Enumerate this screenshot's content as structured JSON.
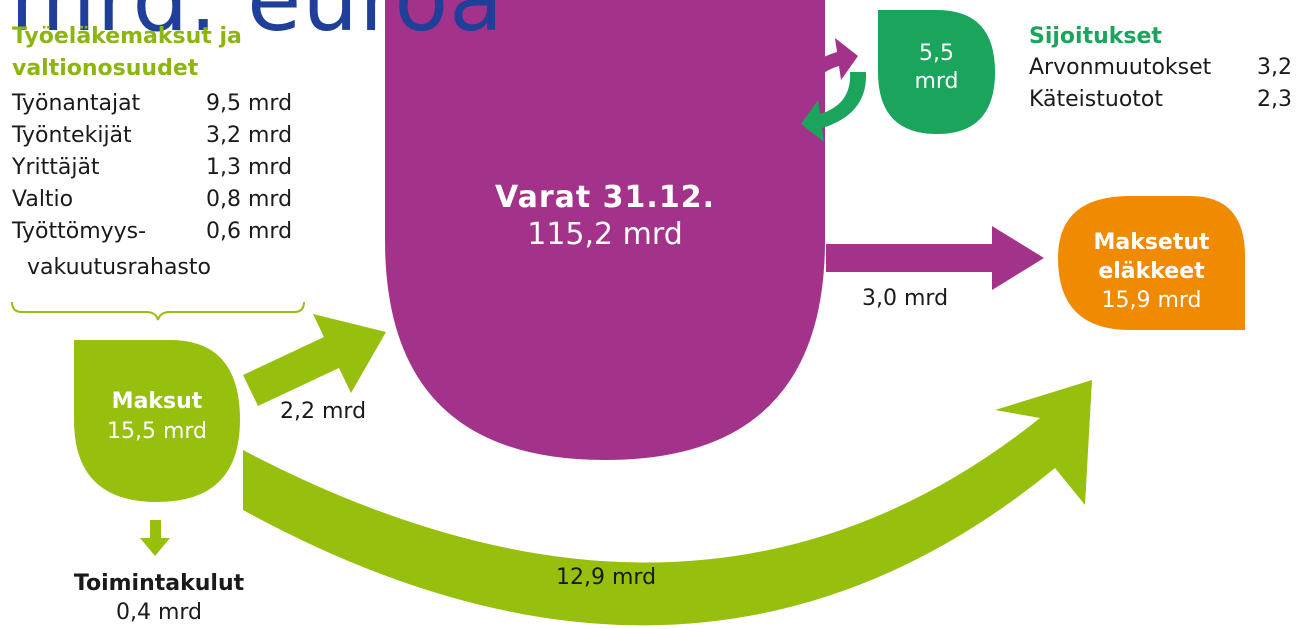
{
  "title_fragment": "mrd. euroa",
  "sources": {
    "heading_line1": "Työeläkemaksut ja",
    "heading_line2": "valtionosuudet",
    "rows": [
      {
        "label": "Työnantajat",
        "value": "9,5 mrd"
      },
      {
        "label": "Työntekijät",
        "value": "3,2 mrd"
      },
      {
        "label": "Yrittäjät",
        "value": "1,3 mrd"
      },
      {
        "label": "Valtio",
        "value": "0,8 mrd"
      },
      {
        "label": "Työttömyys-",
        "value": "0,6 mrd"
      }
    ],
    "last_label_cont": "vakuutusrahasto"
  },
  "contributions": {
    "label": "Maksut",
    "value": "15,5 mrd"
  },
  "to_assets": {
    "value": "2,2 mrd"
  },
  "operating_costs": {
    "label": "Toimintakulut",
    "value": "0,4 mrd"
  },
  "assets": {
    "label": "Varat 31.12.",
    "value": "115,2 mrd"
  },
  "to_pensions_from_assets": {
    "value": "3,0 mrd"
  },
  "to_pensions_from_contributions": {
    "value": "12,9 mrd"
  },
  "pensions": {
    "line1": "Maksetut",
    "line2": "eläkkeet",
    "value": "15,9 mrd"
  },
  "investment_return": {
    "line1": "5,5",
    "line2": "mrd"
  },
  "investments": {
    "heading": "Sijoitukset",
    "rows": [
      {
        "label": "Arvonmuutokset",
        "value": "3,2"
      },
      {
        "label": "Käteistuotot",
        "value": "2,3"
      }
    ]
  },
  "colors": {
    "green": "#97bf0d",
    "purple": "#a3328a",
    "orange": "#f08a00",
    "teal": "#1aa45c",
    "title_blue": "#1f3f99"
  }
}
